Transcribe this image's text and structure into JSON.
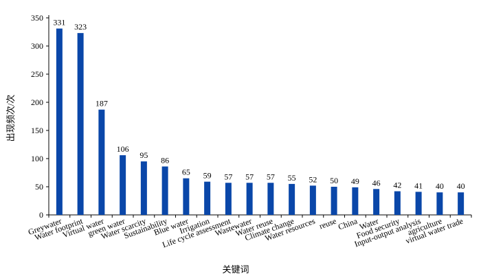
{
  "chart_data": {
    "type": "bar",
    "title": "",
    "xlabel": "关键词",
    "ylabel": "出现频次/次",
    "categories": [
      "Greywater",
      "Water footprint",
      "Virtual water",
      "green water",
      "Water scarcity",
      "Sustainability",
      "Blue water",
      "Irrigation",
      "Life cycle assessment",
      "Wastewater",
      "Water reuse",
      "Climate change",
      "Water resources",
      "reuse",
      "China",
      "Water",
      "Food security",
      "Input-output analysis",
      "agriculture",
      "virtual water trade"
    ],
    "values": [
      331,
      323,
      187,
      106,
      95,
      86,
      65,
      59,
      57,
      57,
      57,
      55,
      52,
      50,
      49,
      46,
      42,
      41,
      40,
      40
    ],
    "ylim": [
      0,
      350
    ],
    "yticks": [
      "0",
      "50",
      "100",
      "150",
      "200",
      "250",
      "300",
      "350"
    ],
    "grid": false,
    "bar_color": "#0a47a9"
  }
}
